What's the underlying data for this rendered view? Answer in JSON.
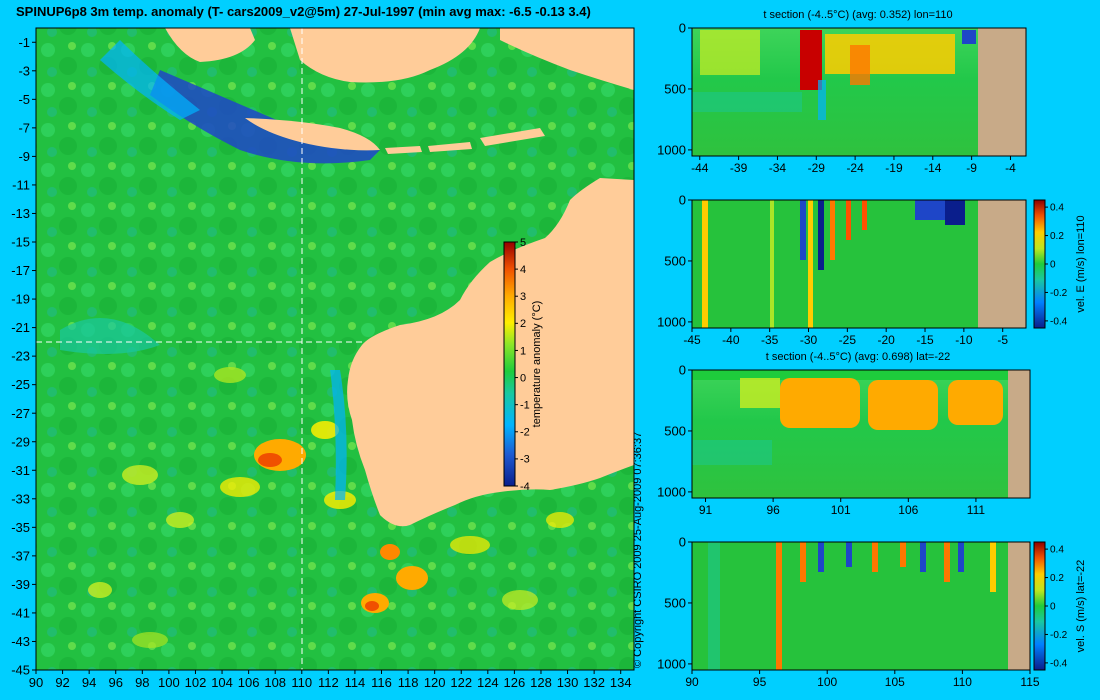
{
  "title": "SPINUP6p8 3m temp. anomaly (T- cars2009_v2@5m) 27-Jul-1997 (min avg max: -6.5 -0.13 3.4)",
  "copyright": "© Copyright CSIRO 2009  25-Aug-2009 07:36:37",
  "colors": {
    "background": "#00cfff",
    "land": "#ffcc99",
    "bottom": "#c8aa88",
    "crosshair": "#ffffff"
  },
  "chart_data": [
    {
      "id": "map",
      "type": "heatmap",
      "title": "",
      "x_ticks": [
        "90",
        "92",
        "94",
        "96",
        "98",
        "100",
        "102",
        "104",
        "106",
        "108",
        "110",
        "112",
        "114",
        "116",
        "118",
        "120",
        "122",
        "124",
        "126",
        "128",
        "130",
        "132",
        "134"
      ],
      "y_ticks": [
        "-1",
        "-3",
        "-5",
        "-7",
        "-9",
        "-11",
        "-13",
        "-15",
        "-17",
        "-19",
        "-21",
        "-23",
        "-25",
        "-27",
        "-29",
        "-31",
        "-33",
        "-35",
        "-37",
        "-39",
        "-41",
        "-43",
        "-45"
      ],
      "xlim": [
        90,
        135
      ],
      "ylim": [
        -45,
        0
      ],
      "crosshair": {
        "lon": 110,
        "lat": -22
      },
      "colorbar": {
        "label": "temperature anomaly (°C)",
        "ticks": [
          "5",
          "4",
          "3",
          "2",
          "1",
          "0",
          "-1",
          "-2",
          "-3",
          "-4"
        ],
        "range": [
          -4,
          5
        ]
      }
    },
    {
      "id": "section-1",
      "type": "heatmap",
      "title": "t section (-4..5°C) (avg: 0.352) lon=110",
      "x_ticks": [
        "-44",
        "-39",
        "-34",
        "-29",
        "-24",
        "-19",
        "-14",
        "-9",
        "-4"
      ],
      "xlim": [
        -45,
        -2
      ],
      "y_ticks": [
        "0",
        "500",
        "1000"
      ],
      "ylim": [
        0,
        1050
      ]
    },
    {
      "id": "section-2",
      "type": "heatmap",
      "title": "",
      "x_ticks": [
        "-45",
        "-40",
        "-35",
        "-30",
        "-25",
        "-20",
        "-15",
        "-10",
        "-5"
      ],
      "xlim": [
        -45,
        -2
      ],
      "y_ticks": [
        "0",
        "500",
        "1000"
      ],
      "ylim": [
        0,
        1050
      ],
      "colorbar": {
        "label": "vel. E (m/s) lon=110",
        "ticks": [
          "0.4",
          "0.2",
          "0",
          "-0.2",
          "-0.4"
        ],
        "range": [
          -0.45,
          0.45
        ]
      }
    },
    {
      "id": "section-3",
      "type": "heatmap",
      "title": "t section (-4..5°C) (avg: 0.698) lat=-22",
      "x_ticks": [
        "91",
        "96",
        "101",
        "106",
        "111"
      ],
      "xlim": [
        90,
        115
      ],
      "y_ticks": [
        "0",
        "500",
        "1000"
      ],
      "ylim": [
        0,
        1050
      ]
    },
    {
      "id": "section-4",
      "type": "heatmap",
      "title": "",
      "x_ticks": [
        "90",
        "95",
        "100",
        "105",
        "110",
        "115"
      ],
      "xlim": [
        90,
        115
      ],
      "y_ticks": [
        "0",
        "500",
        "1000"
      ],
      "ylim": [
        0,
        1050
      ],
      "colorbar": {
        "label": "vel. S (m/s) lat=-22",
        "ticks": [
          "0.4",
          "0.2",
          "0",
          "-0.2",
          "-0.4"
        ],
        "range": [
          -0.45,
          0.45
        ]
      }
    }
  ]
}
